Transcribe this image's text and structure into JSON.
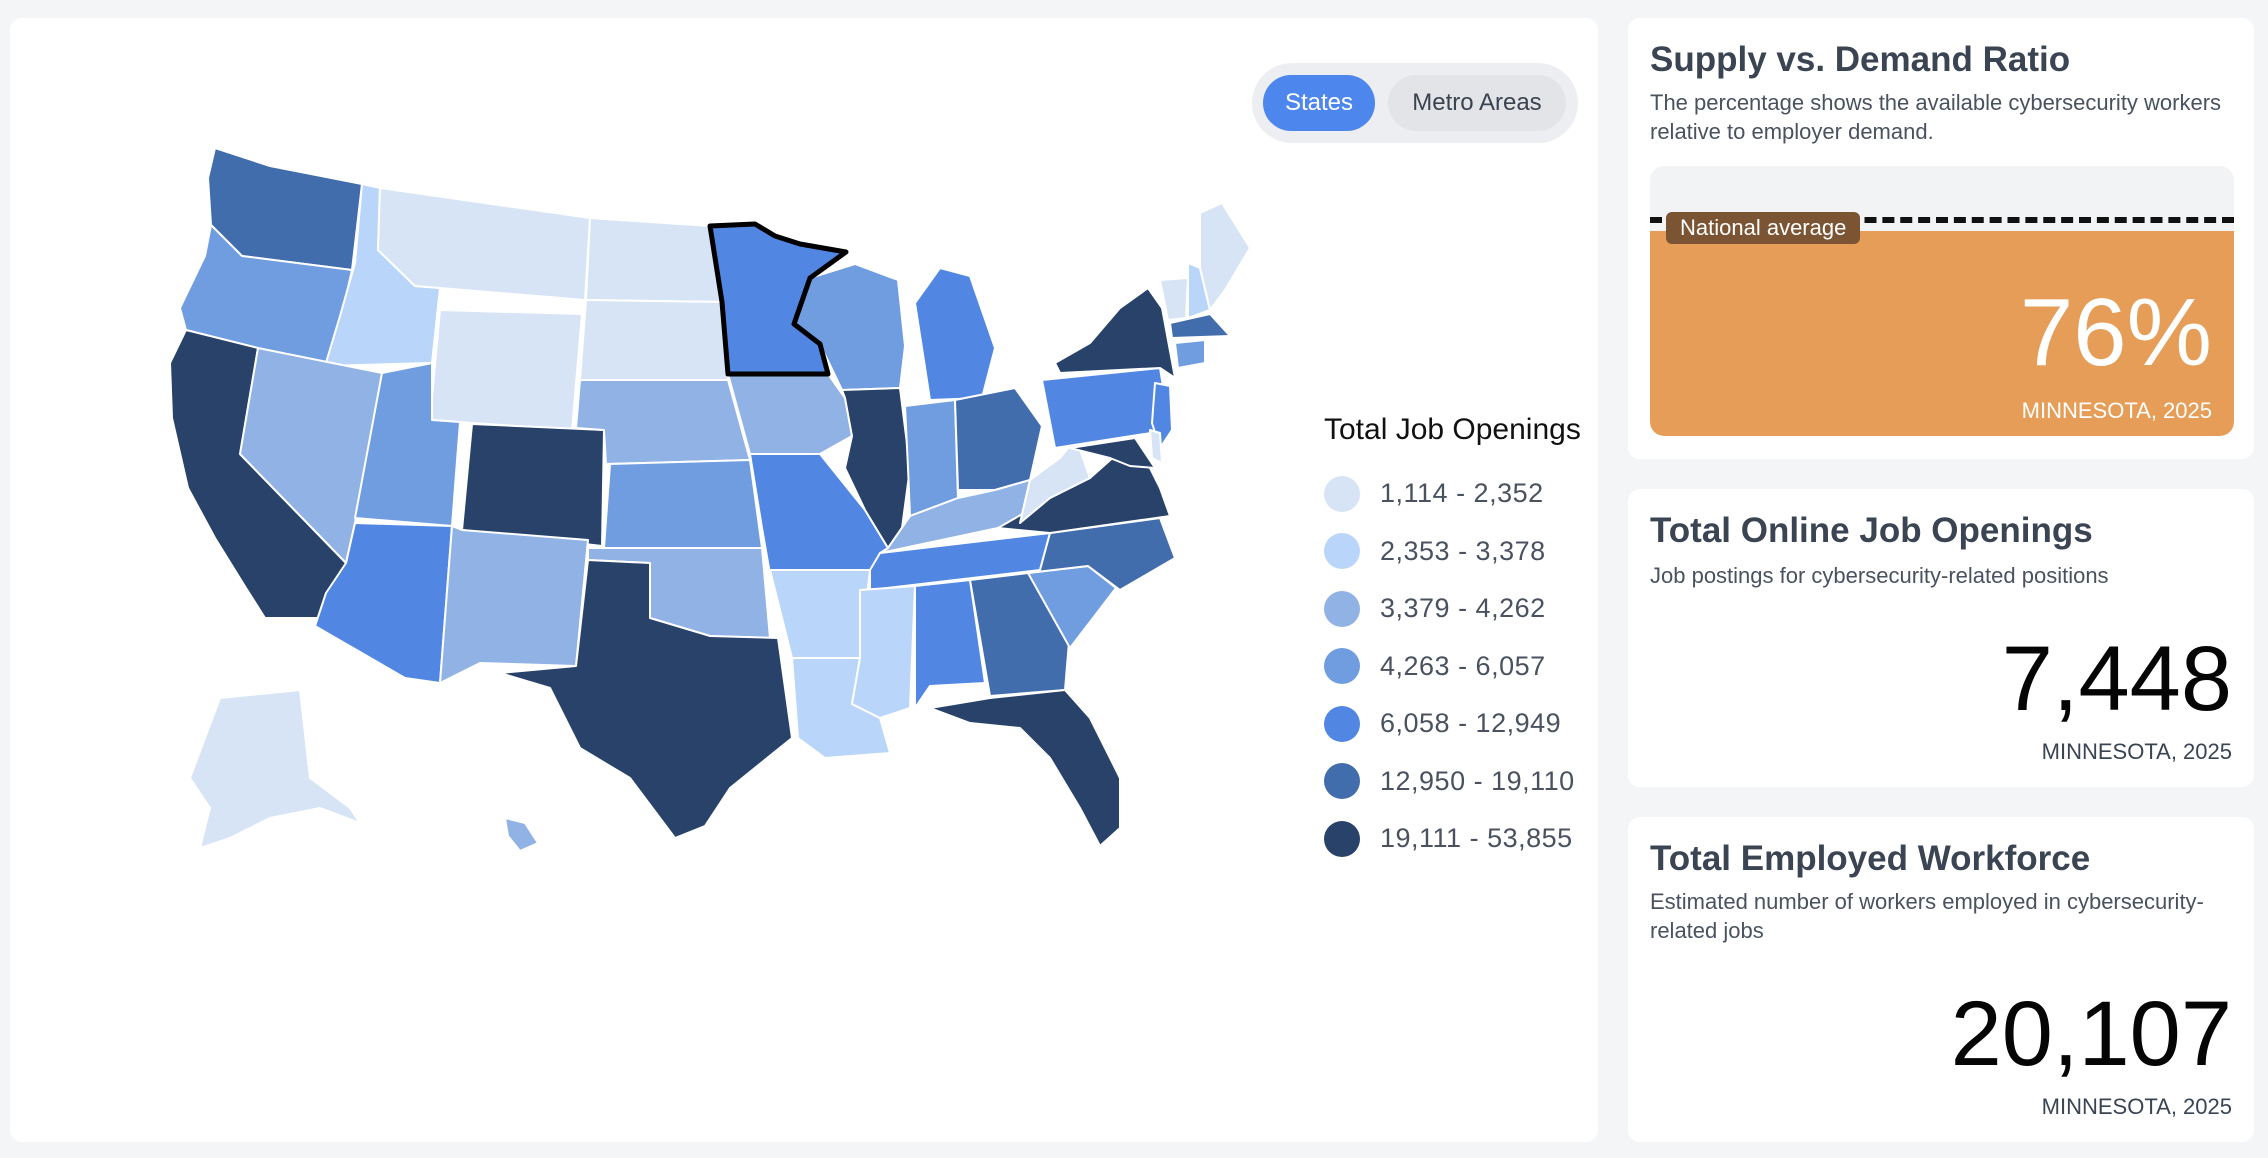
{
  "toggle": {
    "states_label": "States",
    "metro_label": "Metro Areas"
  },
  "legend": {
    "title": "Total Job Openings",
    "bins": [
      {
        "label": "1,114 - 2,352",
        "color": "#d6e4f6"
      },
      {
        "label": "2,353 - 3,378",
        "color": "#b9d6fa"
      },
      {
        "label": "3,379 - 4,262",
        "color": "#91b2e4"
      },
      {
        "label": "4,263 - 6,057",
        "color": "#6f9ddf"
      },
      {
        "label": "6,058 - 12,949",
        "color": "#5187e2"
      },
      {
        "label": "12,950 - 19,110",
        "color": "#426dac"
      },
      {
        "label": "19,111 - 53,855",
        "color": "#28426a"
      }
    ]
  },
  "map": {
    "selected_state": "Minnesota",
    "states": [
      {
        "name": "Washington",
        "bin": 5
      },
      {
        "name": "Oregon",
        "bin": 3
      },
      {
        "name": "California",
        "bin": 6
      },
      {
        "name": "Idaho",
        "bin": 1
      },
      {
        "name": "Nevada",
        "bin": 2
      },
      {
        "name": "Montana",
        "bin": 0
      },
      {
        "name": "Wyoming",
        "bin": 0
      },
      {
        "name": "Utah",
        "bin": 3
      },
      {
        "name": "Arizona",
        "bin": 4
      },
      {
        "name": "Colorado",
        "bin": 6
      },
      {
        "name": "New Mexico",
        "bin": 2
      },
      {
        "name": "North Dakota",
        "bin": 0
      },
      {
        "name": "South Dakota",
        "bin": 0
      },
      {
        "name": "Nebraska",
        "bin": 2
      },
      {
        "name": "Kansas",
        "bin": 3
      },
      {
        "name": "Oklahoma",
        "bin": 2
      },
      {
        "name": "Texas",
        "bin": 6
      },
      {
        "name": "Minnesota",
        "bin": 4
      },
      {
        "name": "Iowa",
        "bin": 2
      },
      {
        "name": "Missouri",
        "bin": 4
      },
      {
        "name": "Arkansas",
        "bin": 1
      },
      {
        "name": "Louisiana",
        "bin": 1
      },
      {
        "name": "Wisconsin",
        "bin": 3
      },
      {
        "name": "Illinois",
        "bin": 6
      },
      {
        "name": "Michigan",
        "bin": 4
      },
      {
        "name": "Indiana",
        "bin": 3
      },
      {
        "name": "Ohio",
        "bin": 5
      },
      {
        "name": "Kentucky",
        "bin": 2
      },
      {
        "name": "Tennessee",
        "bin": 4
      },
      {
        "name": "Mississippi",
        "bin": 1
      },
      {
        "name": "Alabama",
        "bin": 4
      },
      {
        "name": "Georgia",
        "bin": 5
      },
      {
        "name": "Florida",
        "bin": 6
      },
      {
        "name": "South Carolina",
        "bin": 3
      },
      {
        "name": "North Carolina",
        "bin": 5
      },
      {
        "name": "Virginia",
        "bin": 6
      },
      {
        "name": "West Virginia",
        "bin": 0
      },
      {
        "name": "Pennsylvania",
        "bin": 4
      },
      {
        "name": "New York",
        "bin": 6
      },
      {
        "name": "Vermont",
        "bin": 0
      },
      {
        "name": "New Hampshire",
        "bin": 1
      },
      {
        "name": "Maine",
        "bin": 0
      },
      {
        "name": "Massachusetts",
        "bin": 5
      },
      {
        "name": "Connecticut",
        "bin": 3
      },
      {
        "name": "New Jersey",
        "bin": 4
      },
      {
        "name": "Maryland",
        "bin": 6
      },
      {
        "name": "Delaware",
        "bin": 0
      },
      {
        "name": "Alaska",
        "bin": 0
      },
      {
        "name": "Hawaii",
        "bin": 2
      }
    ]
  },
  "ratio_card": {
    "title": "Supply vs. Demand Ratio",
    "subtitle": "The percentage shows the available cybersecurity workers relative to employer demand.",
    "national_average_label": "National average",
    "value": "76%",
    "fill_fraction": 0.76,
    "national_average_fraction": 0.8,
    "caption": "MINNESOTA, 2025"
  },
  "openings_card": {
    "title": "Total Online Job Openings",
    "subtitle": "Job postings for cybersecurity-related positions",
    "value": "7,448",
    "caption": "MINNESOTA, 2025"
  },
  "workforce_card": {
    "title": "Total Employed Workforce",
    "subtitle": "Estimated number of workers employed in cybersecurity-related jobs",
    "value": "20,107",
    "caption": "MINNESOTA, 2025"
  }
}
